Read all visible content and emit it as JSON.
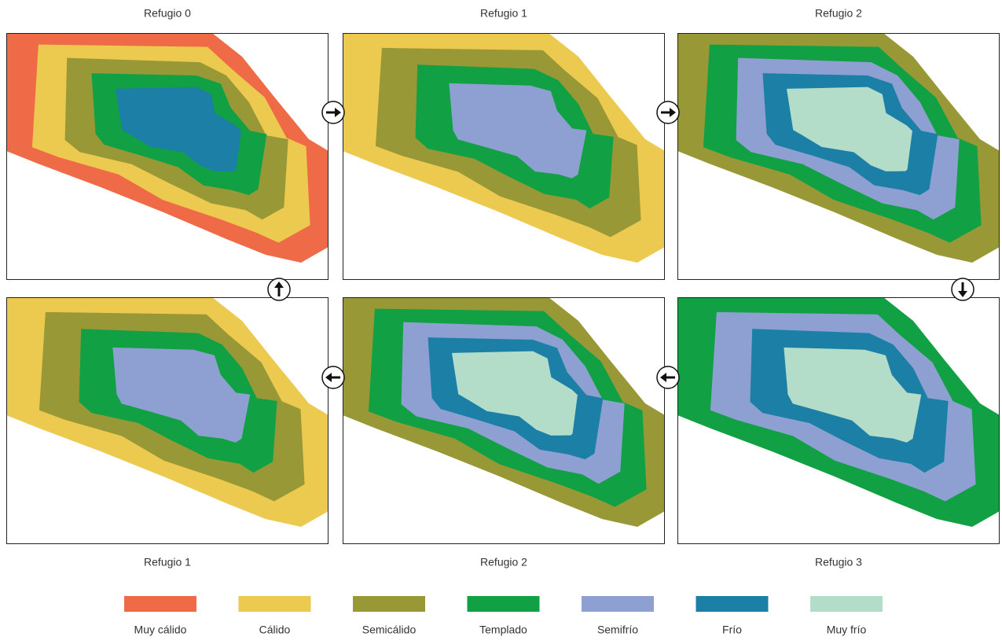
{
  "panels": [
    {
      "label": "Refugio 0"
    },
    {
      "label": "Refugio 1"
    },
    {
      "label": "Refugio 2"
    },
    {
      "label": "Refugio 1"
    },
    {
      "label": "Refugio 2"
    },
    {
      "label": "Refugio 3"
    }
  ],
  "legend": [
    {
      "label": "Muy cálido",
      "color": "#ef6a47"
    },
    {
      "label": "Cálido",
      "color": "#ecc94f"
    },
    {
      "label": "Semicálido",
      "color": "#999837"
    },
    {
      "label": "Templado",
      "color": "#12a044"
    },
    {
      "label": "Semifrío",
      "color": "#8e9fd2"
    },
    {
      "label": "Frío",
      "color": "#1b7fa6"
    },
    {
      "label": "Muy frío",
      "color": "#b4ddc9"
    }
  ]
}
